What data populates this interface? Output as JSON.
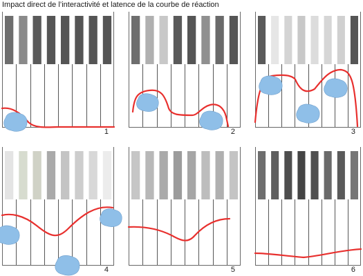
{
  "title": "Impact direct de l’interactivité et latence de la courbe de réaction",
  "colors": {
    "curve": "#e8302e",
    "hand_fill": "#8fbfe8",
    "hand_outline": "#6f9fcc",
    "frame": "#666666",
    "rod": "#555555"
  },
  "panels": [
    {
      "number": "1",
      "key_shades": [
        "#6e6e6e",
        "#8a8a8a",
        "#5a5a5a",
        "#555555",
        "#555555",
        "#555555",
        "#555555",
        "#555555"
      ]
    },
    {
      "number": "2",
      "key_shades": [
        "#6e6e6e",
        "#b0b0b0",
        "#c8c8c8",
        "#5a5a5a",
        "#555555",
        "#909090",
        "#6a6a6a",
        "#555555"
      ]
    },
    {
      "number": "3",
      "key_shades": [
        "#5a5a5a",
        "#e6e6e6",
        "#d4d4d4",
        "#c8c8c8",
        "#dcdcdc",
        "#d6d6d6",
        "#d0d0d0",
        "#555555"
      ]
    },
    {
      "number": "4",
      "key_shades": [
        "#e4e4e4",
        "#d7dccf",
        "#d0d2c6",
        "#aaaaaa",
        "#c4c4c4",
        "#cdcdcd",
        "#d8d8d8",
        "#ececec"
      ]
    },
    {
      "number": "5",
      "key_shades": [
        "#c6c6c6",
        "#b8b8b8",
        "#aaaaaa",
        "#9c9c9c",
        "#a6a6a6",
        "#bdbdbd",
        "#b0b0b0",
        "#c4c4c4"
      ]
    },
    {
      "number": "6",
      "key_shades": [
        "#6e6e6e",
        "#5e5e5e",
        "#4e4e4e",
        "#444444",
        "#505050",
        "#6a6a6a",
        "#5a5a5a",
        "#767676"
      ]
    }
  ]
}
